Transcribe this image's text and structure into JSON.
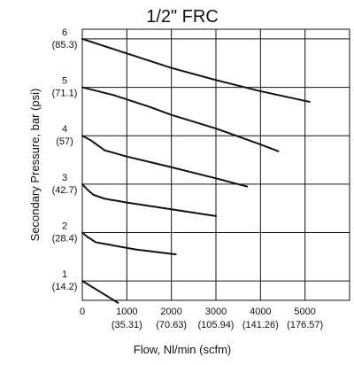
{
  "chart_data": {
    "type": "line",
    "title": "1/2\" FRC",
    "xlabel": "Flow, Nl/min (scfm)",
    "ylabel": "Secondary Pressure, bar (psi)",
    "xlim": [
      0,
      6000
    ],
    "ylim": [
      0.6,
      6.2
    ],
    "grid": true,
    "x_ticks": [
      {
        "value": 0,
        "label": "0",
        "sublabel": ""
      },
      {
        "value": 1000,
        "label": "1000",
        "sublabel": "(35.31)"
      },
      {
        "value": 2000,
        "label": "2000",
        "sublabel": "(70.63)"
      },
      {
        "value": 3000,
        "label": "3000",
        "sublabel": "(105.94)"
      },
      {
        "value": 4000,
        "label": "4000",
        "sublabel": "(141.26)"
      },
      {
        "value": 5000,
        "label": "5000",
        "sublabel": "(176.57)"
      }
    ],
    "y_ticks": [
      {
        "value": 1,
        "label": "1",
        "sublabel": "(14.2)"
      },
      {
        "value": 2,
        "label": "2",
        "sublabel": "(28.4)"
      },
      {
        "value": 3,
        "label": "3",
        "sublabel": "(42.7)"
      },
      {
        "value": 4,
        "label": "4",
        "sublabel": "(57)"
      },
      {
        "value": 5,
        "label": "5",
        "sublabel": "(71.1)"
      },
      {
        "value": 6,
        "label": "6",
        "sublabel": "(85.3)"
      }
    ],
    "series": [
      {
        "points": [
          [
            0,
            1.0
          ],
          [
            800,
            0.55
          ]
        ]
      },
      {
        "points": [
          [
            0,
            2.0
          ],
          [
            100,
            1.92
          ],
          [
            300,
            1.8
          ],
          [
            600,
            1.75
          ],
          [
            1200,
            1.65
          ],
          [
            2100,
            1.55
          ]
        ]
      },
      {
        "points": [
          [
            0,
            3.0
          ],
          [
            100,
            2.9
          ],
          [
            250,
            2.78
          ],
          [
            500,
            2.7
          ],
          [
            1000,
            2.62
          ],
          [
            2000,
            2.48
          ],
          [
            3000,
            2.34
          ]
        ]
      },
      {
        "points": [
          [
            0,
            4.0
          ],
          [
            200,
            3.9
          ],
          [
            500,
            3.7
          ],
          [
            1000,
            3.57
          ],
          [
            2000,
            3.35
          ],
          [
            3000,
            3.12
          ],
          [
            3700,
            2.95
          ]
        ]
      },
      {
        "points": [
          [
            0,
            5.0
          ],
          [
            700,
            4.84
          ],
          [
            1500,
            4.6
          ],
          [
            2000,
            4.43
          ],
          [
            3000,
            4.15
          ],
          [
            4000,
            3.82
          ],
          [
            4400,
            3.68
          ]
        ]
      },
      {
        "points": [
          [
            0,
            6.0
          ],
          [
            1000,
            5.7
          ],
          [
            2000,
            5.4
          ],
          [
            3000,
            5.15
          ],
          [
            4000,
            4.92
          ],
          [
            5100,
            4.7
          ]
        ]
      }
    ]
  },
  "colors": {
    "line": "#111111",
    "grid": "#111111",
    "background": "#ffffff"
  }
}
